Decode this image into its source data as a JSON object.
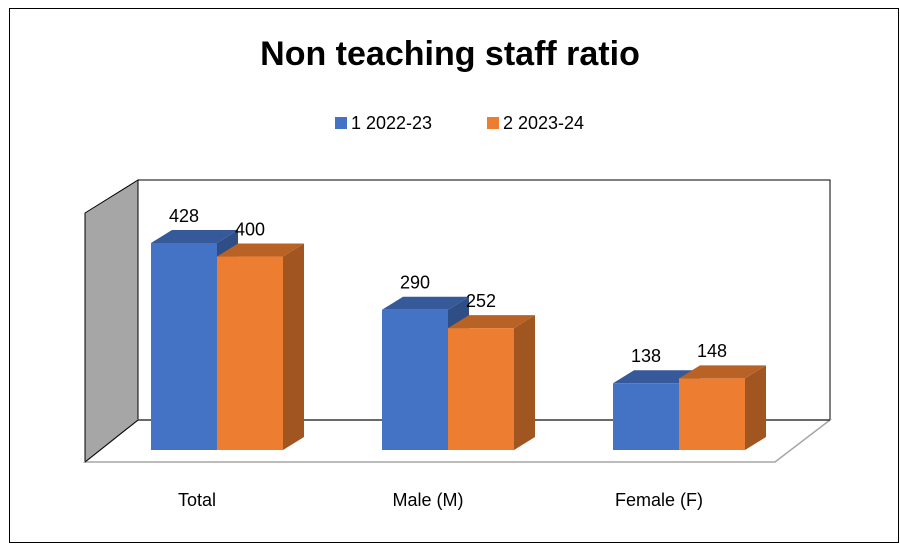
{
  "chart_data": {
    "type": "bar",
    "title": "Non teaching staff ratio",
    "categories": [
      "Total",
      "Male (M)",
      "Female (F)"
    ],
    "series": [
      {
        "name": "1 2022-23",
        "color": "#4472c4",
        "values": [
          428,
          290,
          138
        ]
      },
      {
        "name": "2 2023-24",
        "color": "#ed7d31",
        "values": [
          400,
          252,
          148
        ]
      }
    ]
  }
}
